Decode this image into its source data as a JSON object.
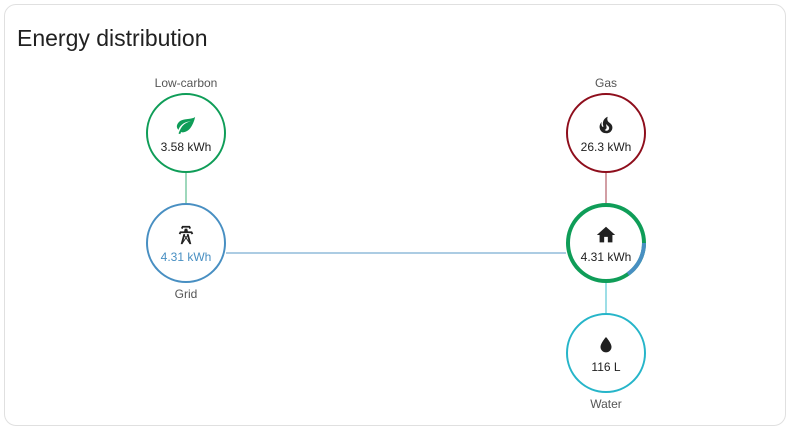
{
  "card": {
    "title": "Energy distribution"
  },
  "colors": {
    "low_carbon": "#0f9d58",
    "grid": "#488fc2",
    "gas": "#8e0e1c",
    "water": "#26b5c9",
    "home_ring": "#0f9d58",
    "home_ring_grid": "#488fc2"
  },
  "nodes": {
    "low_carbon": {
      "label": "Low-carbon",
      "value": "3.58 kWh",
      "icon": "leaf-icon"
    },
    "grid": {
      "label": "Grid",
      "value": "4.31 kWh",
      "icon": "transmission-tower-icon"
    },
    "gas": {
      "label": "Gas",
      "value": "26.3 kWh",
      "icon": "fire-icon"
    },
    "home": {
      "value": "4.31 kWh",
      "icon": "home-icon"
    },
    "water": {
      "label": "Water",
      "value": "116 L",
      "icon": "water-drop-icon"
    }
  }
}
